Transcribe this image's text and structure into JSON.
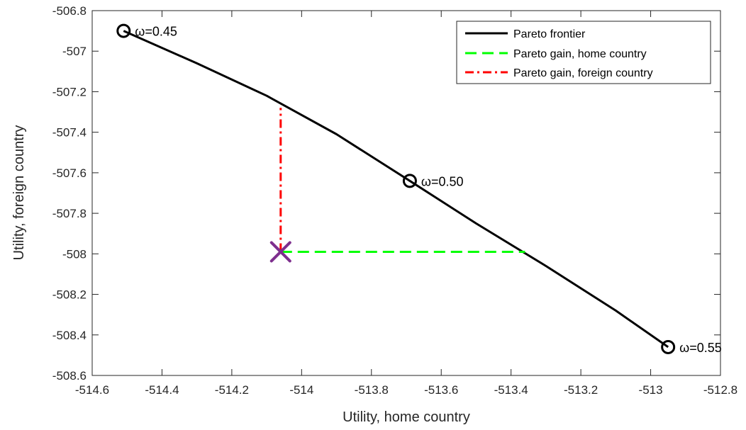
{
  "chart_data": {
    "type": "line",
    "xlabel": "Utility, home country",
    "ylabel": "Utility, foreign country",
    "xlim": [
      -514.6,
      -512.8
    ],
    "ylim": [
      -508.6,
      -506.8
    ],
    "xticks": [
      "-514.6",
      "-514.4",
      "-514.2",
      "-514",
      "-513.8",
      "-513.6",
      "-513.4",
      "-513.2",
      "-513",
      "-512.8"
    ],
    "yticks": [
      "-506.8",
      "-507",
      "-507.2",
      "-507.4",
      "-507.6",
      "-507.8",
      "-508",
      "-508.2",
      "-508.4",
      "-508.6"
    ],
    "grid": false,
    "legend_position": "top-right",
    "series": [
      {
        "name": "Pareto frontier",
        "color": "#000000",
        "style": "solid",
        "x": [
          -514.51,
          -514.3,
          -514.1,
          -513.9,
          -513.69,
          -513.5,
          -513.3,
          -513.1,
          -512.95
        ],
        "y": [
          -506.9,
          -507.06,
          -507.22,
          -507.41,
          -507.64,
          -507.85,
          -508.06,
          -508.28,
          -508.46
        ]
      },
      {
        "name": "Pareto gain, home country",
        "color": "#00ff00",
        "style": "dashed",
        "x": [
          -514.06,
          -513.36
        ],
        "y": [
          -507.99,
          -507.99
        ]
      },
      {
        "name": "Pareto gain, foreign country",
        "color": "#ff0000",
        "style": "dashdot",
        "x": [
          -514.06,
          -514.06
        ],
        "y": [
          -507.99,
          -507.28
        ]
      }
    ],
    "markers": [
      {
        "label": "ω=0.45",
        "x": -514.51,
        "y": -506.9,
        "symbol": "circle"
      },
      {
        "label": "ω=0.50",
        "x": -513.69,
        "y": -507.64,
        "symbol": "circle"
      },
      {
        "label": "ω=0.55",
        "x": -512.95,
        "y": -508.46,
        "symbol": "circle"
      }
    ],
    "status_quo_point": {
      "x": -514.06,
      "y": -507.99,
      "symbol": "x",
      "color": "#7e2f8e"
    }
  }
}
